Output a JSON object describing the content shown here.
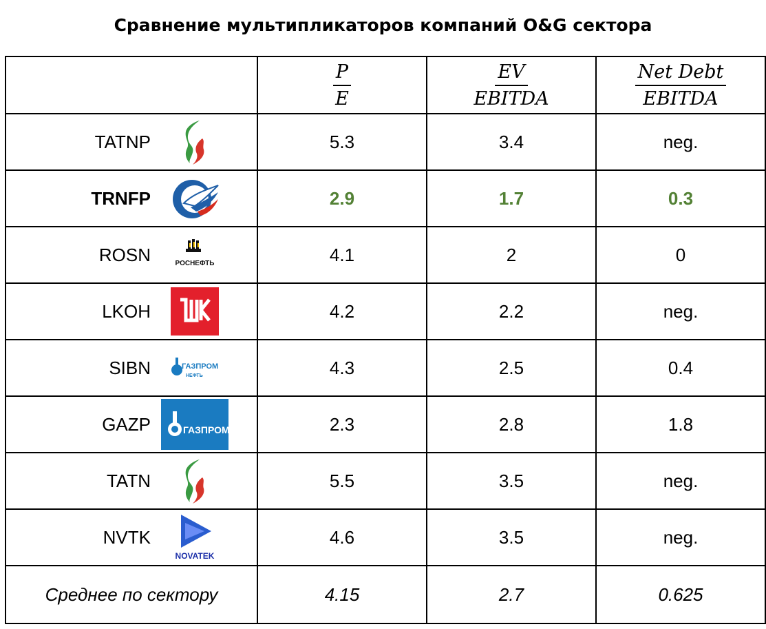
{
  "title": "Сравнение мультипликаторов компаний O&G сектора",
  "headers": [
    {
      "num": "P",
      "den": "E"
    },
    {
      "num": "EV",
      "den": "EBITDA"
    },
    {
      "num": "Net Debt",
      "den": "EBITDA"
    }
  ],
  "rows": [
    {
      "ticker": "TATNP",
      "logo": "tatneft-logo",
      "pe": "5.3",
      "ev": "3.4",
      "nd": "neg."
    },
    {
      "ticker": "TRNFP",
      "logo": "transneft-logo",
      "pe": "2.9",
      "ev": "1.7",
      "nd": "0.3",
      "highlight": true,
      "highlight_color": "#538135"
    },
    {
      "ticker": "ROSN",
      "logo": "rosneft-logo",
      "logo_text": "РОСНЕФТЬ",
      "pe": "4.1",
      "ev": "2",
      "nd": "0"
    },
    {
      "ticker": "LKOH",
      "logo": "lukoil-logo",
      "pe": "4.2",
      "ev": "2.2",
      "nd": "neg."
    },
    {
      "ticker": "SIBN",
      "logo": "gazpromneft-logo",
      "logo_text": "ГАЗПРОМ",
      "logo_subtext": "НЕФТЬ",
      "pe": "4.3",
      "ev": "2.5",
      "nd": "0.4"
    },
    {
      "ticker": "GAZP",
      "logo": "gazprom-logo",
      "logo_text": "ГАЗПРОМ",
      "pe": "2.3",
      "ev": "2.8",
      "nd": "1.8"
    },
    {
      "ticker": "TATN",
      "logo": "tatneft-logo",
      "pe": "5.5",
      "ev": "3.5",
      "nd": "neg."
    },
    {
      "ticker": "NVTK",
      "logo": "novatek-logo",
      "logo_text": "NOVATEK",
      "pe": "4.6",
      "ev": "3.5",
      "nd": "neg."
    }
  ],
  "average": {
    "label": "Среднее по сектору",
    "pe": "4.15",
    "ev": "2.7",
    "nd": "0.625"
  },
  "chart_data": {
    "type": "table",
    "title": "Сравнение мультипликаторов компаний O&G сектора",
    "columns": [
      "",
      "P/E",
      "EV/EBITDA",
      "Net Debt/EBITDA"
    ],
    "rows": [
      [
        "TATNP",
        "5.3",
        "3.4",
        "neg."
      ],
      [
        "TRNFP",
        "2.9",
        "1.7",
        "0.3"
      ],
      [
        "ROSN",
        "4.1",
        "2",
        "0"
      ],
      [
        "LKOH",
        "4.2",
        "2.2",
        "neg."
      ],
      [
        "SIBN",
        "4.3",
        "2.5",
        "0.4"
      ],
      [
        "GAZP",
        "2.3",
        "2.8",
        "1.8"
      ],
      [
        "TATN",
        "5.5",
        "3.5",
        "neg."
      ],
      [
        "NVTK",
        "4.6",
        "3.5",
        "neg."
      ],
      [
        "Среднее по сектору",
        "4.15",
        "2.7",
        "0.625"
      ]
    ]
  }
}
